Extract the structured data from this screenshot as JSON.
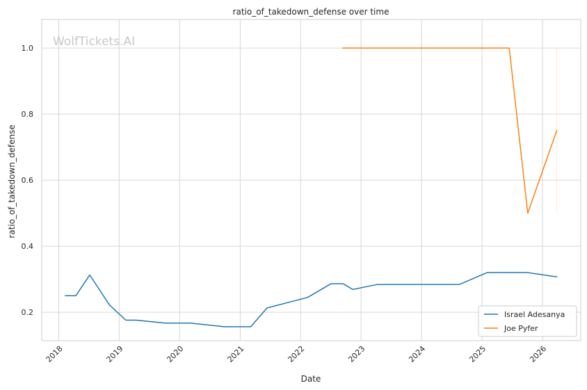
{
  "chart_data": {
    "type": "line",
    "title": "ratio_of_takedown_defense over time",
    "xlabel": "Date",
    "ylabel": "ratio_of_takedown_defense",
    "watermark": "WolfTickets.AI",
    "grid": true,
    "legend_position": "lower-right",
    "x_type": "date",
    "xlim": [
      "2017-09-20",
      "2026-08-20"
    ],
    "ylim": [
      0.114,
      1.0865
    ],
    "x_ticks": [
      "2018",
      "2019",
      "2020",
      "2021",
      "2022",
      "2023",
      "2024",
      "2025",
      "2026"
    ],
    "y_ticks": [
      "0.2",
      "0.4",
      "0.6",
      "0.8",
      "1.0"
    ],
    "colors": {
      "background": "#ffffff",
      "grid": "#d6d6d6",
      "axes_border": "#cccccc",
      "text": "#262626"
    },
    "series": [
      {
        "name": "Israel Adesanya",
        "color": "#1f77b4",
        "points": [
          [
            "2018-02-10",
            0.25
          ],
          [
            "2018-04-14",
            0.25
          ],
          [
            "2018-07-07",
            0.313
          ],
          [
            "2018-11-03",
            0.222
          ],
          [
            "2019-02-10",
            0.176
          ],
          [
            "2019-04-13",
            0.176
          ],
          [
            "2019-10-06",
            0.167
          ],
          [
            "2020-03-07",
            0.167
          ],
          [
            "2020-09-27",
            0.156
          ],
          [
            "2021-03-06",
            0.156
          ],
          [
            "2021-06-12",
            0.213
          ],
          [
            "2022-02-12",
            0.245
          ],
          [
            "2022-07-02",
            0.286
          ],
          [
            "2022-09-17",
            0.286
          ],
          [
            "2022-11-12",
            0.269
          ],
          [
            "2023-04-08",
            0.284
          ],
          [
            "2024-08-17",
            0.284
          ],
          [
            "2025-02-01",
            0.32
          ],
          [
            "2025-10-04",
            0.32
          ],
          [
            "2026-03-28",
            0.307
          ]
        ]
      },
      {
        "name": "Joe Pyfer",
        "color": "#ff7f0e",
        "points": [
          [
            "2022-09-13",
            1.0
          ],
          [
            "2025-06-14",
            1.0
          ],
          [
            "2025-10-04",
            0.5
          ],
          [
            "2026-03-28",
            0.75
          ]
        ]
      }
    ],
    "extra_marks": [
      {
        "color": "#ff7f0e",
        "opacity": 0.15,
        "x": "2026-03-28",
        "y1": 0.5,
        "y2": 1.0
      }
    ]
  }
}
